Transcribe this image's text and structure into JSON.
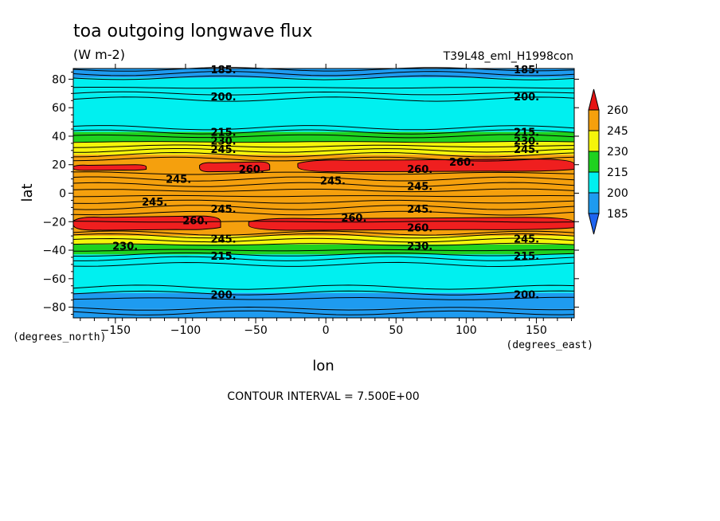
{
  "chart_data": {
    "type": "heatmap",
    "title": "toa outgoing longwave flux",
    "subtitle": "(W m-2)",
    "run_label": "T39L48_eml_H1998con",
    "xlabel": "lon",
    "ylabel": "lat",
    "x_units": "(degrees_east)",
    "y_units": "(degrees_north)",
    "xlim": [
      -180,
      177
    ],
    "ylim": [
      -87.5,
      87.5
    ],
    "xticks": [
      -150,
      -100,
      -50,
      0,
      50,
      100,
      150
    ],
    "xtick_labels": [
      "−150",
      "−100",
      "−50",
      "0",
      "50",
      "100",
      "150"
    ],
    "yticks": [
      -80,
      -60,
      -40,
      -20,
      0,
      20,
      40,
      60,
      80
    ],
    "ytick_labels": [
      "−80",
      "−60",
      "−40",
      "−20",
      "0",
      "20",
      "40",
      "60",
      "80"
    ],
    "grid": false,
    "footnote": "CONTOUR INTERVAL = 7.500E+00",
    "contour_interval": 7.5,
    "levels": [
      185,
      200,
      215,
      230,
      245,
      260
    ],
    "colorbar": {
      "labels": [
        "260",
        "245",
        "230",
        "215",
        "200",
        "185"
      ],
      "colors": [
        "#ef1f1f",
        "#f5a00d",
        "#f5f50a",
        "#1fd21f",
        "#00f0f0",
        "#1e9bf0"
      ],
      "under_color": "#1e64f0",
      "over_color": "#e61414"
    },
    "zonal_bands": [
      {
        "lat_min": 81,
        "lat_max": 87.5,
        "level": "185-200"
      },
      {
        "lat_min": 70,
        "lat_max": 81,
        "level": "200-215"
      },
      {
        "lat_min": 43,
        "lat_max": 70,
        "level": "200-215"
      },
      {
        "lat_min": 36,
        "lat_max": 43,
        "level": "215-230"
      },
      {
        "lat_min": 27,
        "lat_max": 36,
        "level": "230-245"
      },
      {
        "lat_min": -20,
        "lat_max": 27,
        "level": "245-260"
      },
      {
        "lat_min": -30,
        "lat_max": -20,
        "level": "245-260"
      },
      {
        "lat_min": -36,
        "lat_max": -30,
        "level": "230-245"
      },
      {
        "lat_min": -43,
        "lat_max": -36,
        "level": "215-230"
      },
      {
        "lat_min": -70,
        "lat_max": -43,
        "level": "200-215"
      },
      {
        "lat_min": -81,
        "lat_max": -70,
        "level": "185-200"
      },
      {
        "lat_min": -87.5,
        "lat_max": -81,
        "level": "185-200"
      }
    ],
    "max_regions": [
      {
        "label": "260",
        "lon_min": -180,
        "lon_max": -128,
        "lat_min": 16,
        "lat_max": 20
      },
      {
        "label": "260",
        "lon_min": -90,
        "lon_max": -40,
        "lat_min": 15,
        "lat_max": 22
      },
      {
        "label": "260",
        "lon_min": -20,
        "lon_max": 177,
        "lat_min": 15,
        "lat_max": 24
      },
      {
        "label": "260",
        "lon_min": -180,
        "lon_max": -75,
        "lat_min": -26,
        "lat_max": -16
      },
      {
        "label": "260",
        "lon_min": -55,
        "lon_max": 177,
        "lat_min": -26,
        "lat_max": -17
      }
    ],
    "contour_labels": [
      {
        "text": "185.",
        "lon": -73,
        "lat": 87
      },
      {
        "text": "185.",
        "lon": 143,
        "lat": 87
      },
      {
        "text": "200.",
        "lon": -73,
        "lat": 68
      },
      {
        "text": "200.",
        "lon": 143,
        "lat": 68
      },
      {
        "text": "215.",
        "lon": -73,
        "lat": 43
      },
      {
        "text": "230.",
        "lon": -73,
        "lat": 37
      },
      {
        "text": "245.",
        "lon": -73,
        "lat": 31
      },
      {
        "text": "215.",
        "lon": 143,
        "lat": 43
      },
      {
        "text": "230.",
        "lon": 143,
        "lat": 37
      },
      {
        "text": "245.",
        "lon": 143,
        "lat": 31
      },
      {
        "text": "260.",
        "lon": -53,
        "lat": 17
      },
      {
        "text": "260.",
        "lon": 67,
        "lat": 17
      },
      {
        "text": "260.",
        "lon": 97,
        "lat": 22
      },
      {
        "text": "245.",
        "lon": -105,
        "lat": 10
      },
      {
        "text": "245.",
        "lon": 5,
        "lat": 9
      },
      {
        "text": "245.",
        "lon": 67,
        "lat": 5
      },
      {
        "text": "245.",
        "lon": -122,
        "lat": -6
      },
      {
        "text": "245.",
        "lon": -73,
        "lat": -11
      },
      {
        "text": "245.",
        "lon": 67,
        "lat": -11
      },
      {
        "text": "260.",
        "lon": -93,
        "lat": -19
      },
      {
        "text": "260.",
        "lon": 20,
        "lat": -17
      },
      {
        "text": "260.",
        "lon": 67,
        "lat": -24
      },
      {
        "text": "245.",
        "lon": -73,
        "lat": -32
      },
      {
        "text": "245.",
        "lon": 143,
        "lat": -32
      },
      {
        "text": "230.",
        "lon": -143,
        "lat": -37
      },
      {
        "text": "230.",
        "lon": 67,
        "lat": -37
      },
      {
        "text": "215.",
        "lon": -73,
        "lat": -44
      },
      {
        "text": "215.",
        "lon": 143,
        "lat": -44
      },
      {
        "text": "200.",
        "lon": -73,
        "lat": -71
      },
      {
        "text": "200.",
        "lon": 143,
        "lat": -71
      }
    ]
  }
}
